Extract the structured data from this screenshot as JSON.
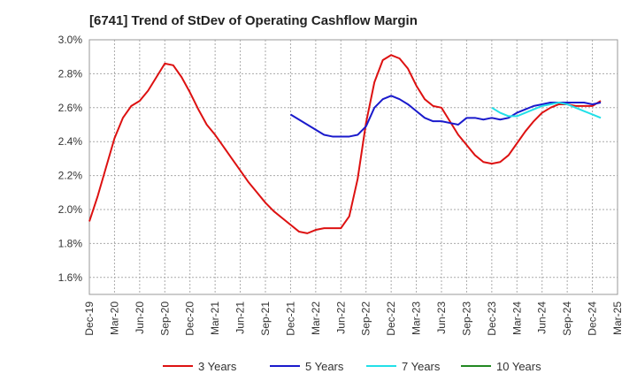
{
  "chart_data": {
    "type": "line",
    "title": "[6741]  Trend of StDev of Operating Cashflow Margin",
    "xlabel": "",
    "ylabel": "",
    "ylim": [
      1.5,
      3.0
    ],
    "y_ticks": [
      "3.0%",
      "2.8%",
      "2.6%",
      "2.4%",
      "2.2%",
      "2.0%",
      "1.8%",
      "1.6%"
    ],
    "y_tick_values": [
      3.0,
      2.8,
      2.6,
      2.4,
      2.2,
      2.0,
      1.8,
      1.6
    ],
    "x_ticks": [
      "Dec-19",
      "Mar-20",
      "Jun-20",
      "Sep-20",
      "Dec-20",
      "Mar-21",
      "Jun-21",
      "Sep-21",
      "Dec-21",
      "Mar-22",
      "Jun-22",
      "Sep-22",
      "Dec-22",
      "Mar-23",
      "Jun-23",
      "Sep-23",
      "Dec-23",
      "Mar-24",
      "Jun-24",
      "Sep-24",
      "Dec-24",
      "Mar-25"
    ],
    "grid": true,
    "legend_position": "bottom",
    "x_month_step": 1,
    "series": [
      {
        "name": "3 Years",
        "color": "#dd1111",
        "start_index": 0,
        "values": [
          1.93,
          2.08,
          2.25,
          2.42,
          2.54,
          2.61,
          2.64,
          2.7,
          2.78,
          2.86,
          2.85,
          2.78,
          2.69,
          2.59,
          2.5,
          2.44,
          2.37,
          2.3,
          2.23,
          2.16,
          2.1,
          2.04,
          1.99,
          1.95,
          1.91,
          1.87,
          1.86,
          1.88,
          1.89,
          1.89,
          1.89,
          1.96,
          2.18,
          2.51,
          2.75,
          2.88,
          2.91,
          2.89,
          2.83,
          2.73,
          2.65,
          2.61,
          2.6,
          2.52,
          2.44,
          2.38,
          2.32,
          2.28,
          2.27,
          2.28,
          2.32,
          2.39,
          2.46,
          2.52,
          2.57,
          2.6,
          2.62,
          2.62,
          2.61,
          2.61,
          2.61,
          2.64
        ]
      },
      {
        "name": "5 Years",
        "color": "#1a1acc",
        "start_index": 24,
        "values": [
          2.56,
          2.53,
          2.5,
          2.47,
          2.44,
          2.43,
          2.43,
          2.43,
          2.44,
          2.49,
          2.6,
          2.65,
          2.67,
          2.65,
          2.62,
          2.58,
          2.54,
          2.52,
          2.52,
          2.51,
          2.5,
          2.54,
          2.54,
          2.53,
          2.54,
          2.53,
          2.54,
          2.57,
          2.59,
          2.61,
          2.62,
          2.63,
          2.63,
          2.63,
          2.63,
          2.63,
          2.62,
          2.63
        ]
      },
      {
        "name": "7 Years",
        "color": "#22e0e8",
        "start_index": 48,
        "values": [
          2.6,
          2.57,
          2.55,
          2.55,
          2.57,
          2.59,
          2.61,
          2.62,
          2.63,
          2.62,
          2.6,
          2.58,
          2.56,
          2.54
        ]
      },
      {
        "name": "10 Years",
        "color": "#228822",
        "start_index": 0,
        "values": []
      }
    ]
  }
}
